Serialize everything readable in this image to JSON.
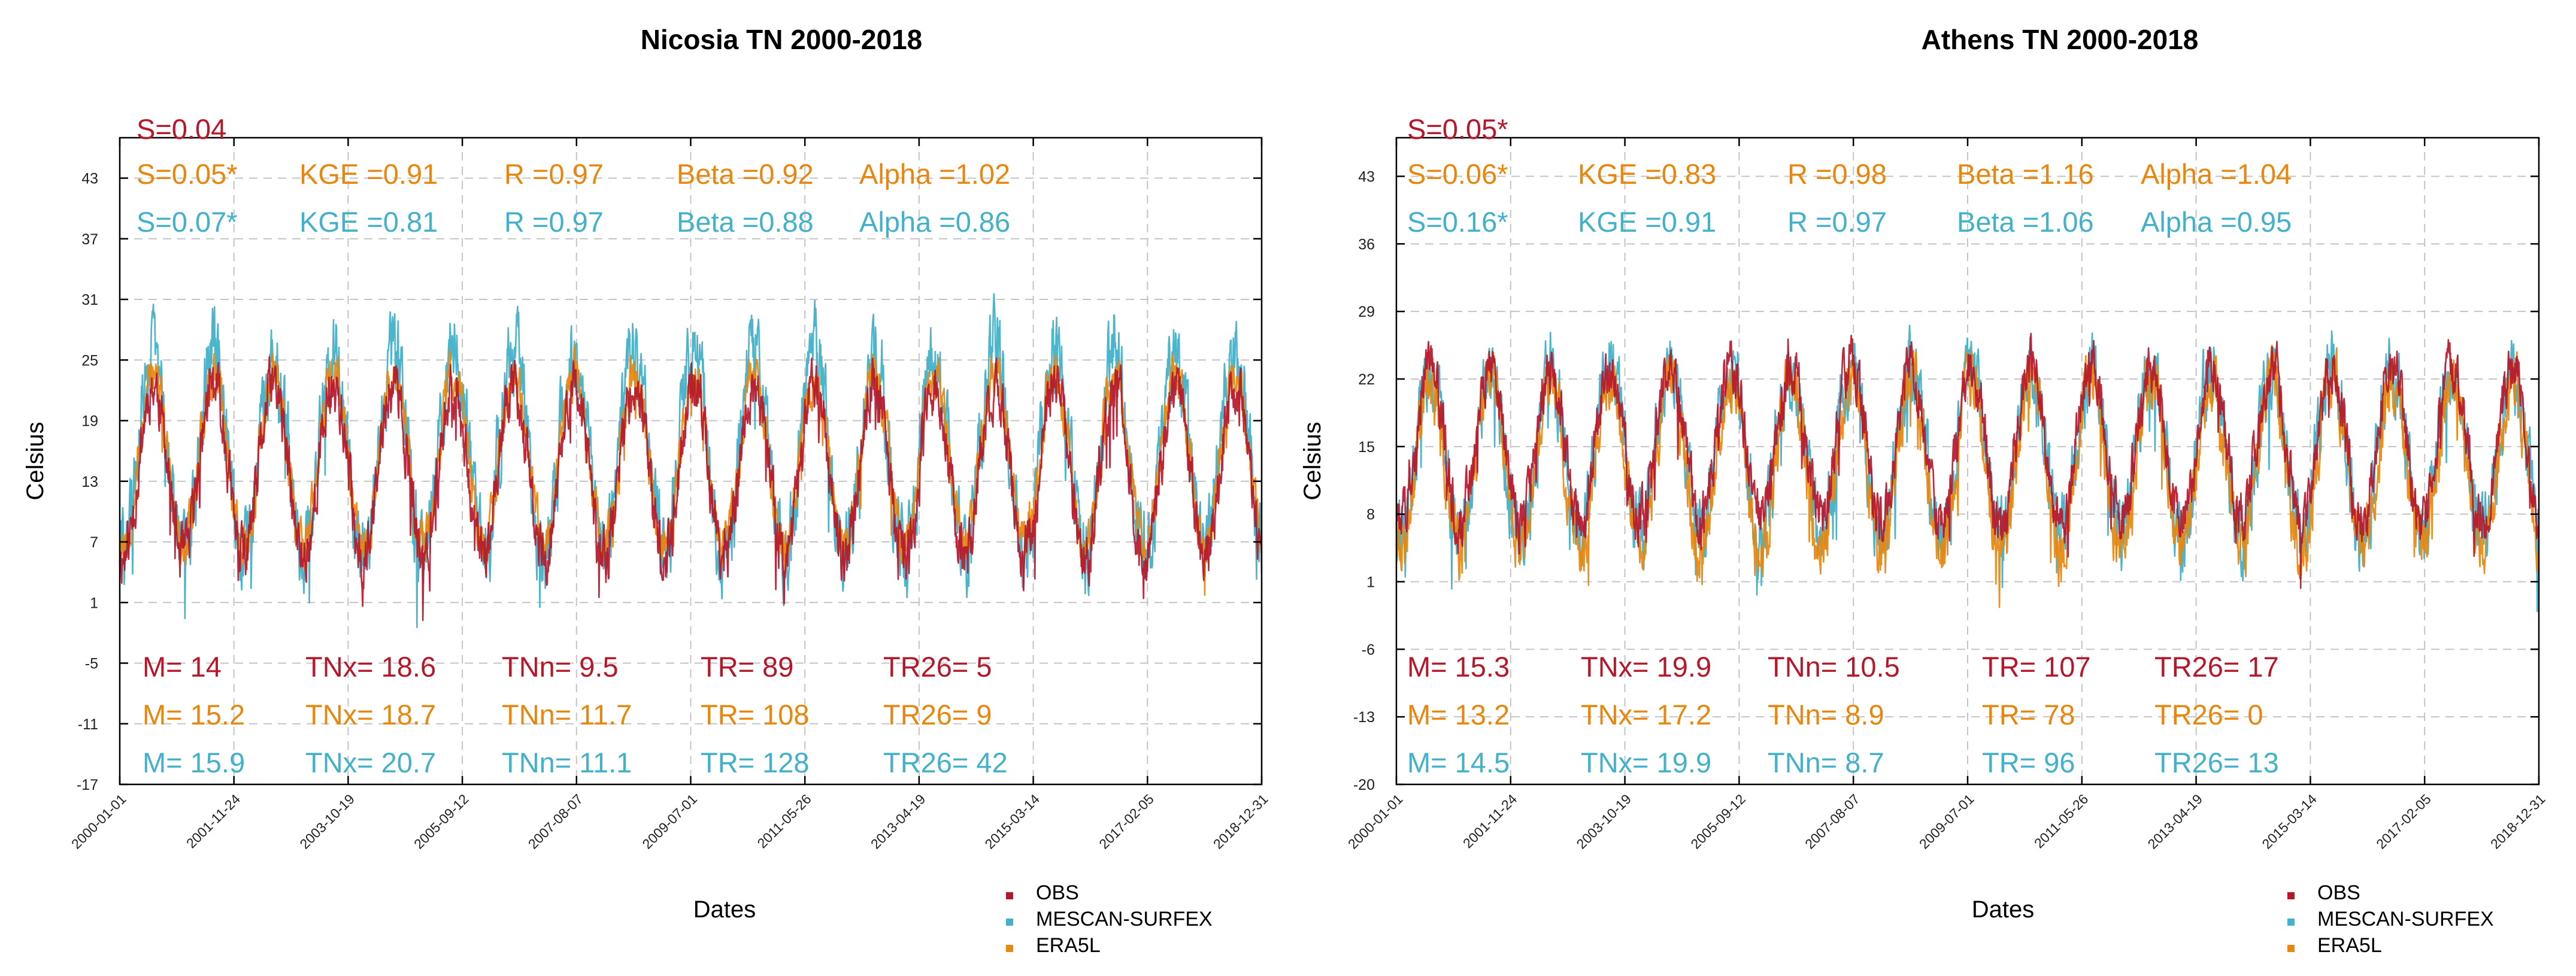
{
  "legend": [
    {
      "label": "OBS",
      "color": "#b5172b"
    },
    {
      "label": "MESCAN-SURFEX",
      "color": "#42b1c9"
    },
    {
      "label": "ERA5L",
      "color": "#e7870d"
    }
  ],
  "chart_data": [
    {
      "type": "line",
      "title": "Nicosia TN 2000-2018",
      "xlabel": "Dates",
      "ylabel": "Celsius",
      "ylim": [
        -17,
        47
      ],
      "yticks": [
        43,
        37,
        31,
        25,
        19,
        13,
        7,
        1,
        -5,
        -11,
        -17
      ],
      "xticks": [
        "2000-01-01",
        "2001-11-24",
        "2003-10-19",
        "2005-09-12",
        "2007-08-07",
        "2009-07-01",
        "2011-05-26",
        "2013-04-19",
        "2015-03-14",
        "2017-02-05",
        "2018-12-31"
      ],
      "grid": true,
      "series": [
        {
          "name": "OBS",
          "color": "#b5172b",
          "mean": 14,
          "amplitude": 8.5,
          "noise": 2.2
        },
        {
          "name": "MESCAN-SURFEX",
          "color": "#42b1c9",
          "mean": 15.9,
          "amplitude": 10.0,
          "noise": 3.2
        },
        {
          "name": "ERA5L",
          "color": "#e7870d",
          "mean": 15.2,
          "amplitude": 8.3,
          "noise": 1.8
        }
      ],
      "stats_top": [
        {
          "color": "#b5172b",
          "items": [
            "S=0.04"
          ]
        },
        {
          "color": "#e7870d",
          "items": [
            "S=0.05*",
            "KGE =0.91",
            "R =0.97",
            "Beta =0.92",
            "Alpha =1.02"
          ]
        },
        {
          "color": "#42b1c9",
          "items": [
            "S=0.07*",
            "KGE =0.81",
            "R =0.97",
            "Beta =0.88",
            "Alpha =0.86"
          ]
        }
      ],
      "stats_bottom": [
        {
          "color": "#b5172b",
          "items": [
            "M= 14",
            "TNx= 18.6",
            "TNn= 9.5",
            "TR= 89",
            "TR26= 5"
          ]
        },
        {
          "color": "#e7870d",
          "items": [
            "M= 15.2",
            "TNx= 18.7",
            "TNn= 11.7",
            "TR= 108",
            "TR26= 9"
          ]
        },
        {
          "color": "#42b1c9",
          "items": [
            "M= 15.9",
            "TNx= 20.7",
            "TNn= 11.1",
            "TR= 128",
            "TR26= 42"
          ]
        }
      ]
    },
    {
      "type": "line",
      "title": "Athens TN 2000-2018",
      "xlabel": "Dates",
      "ylabel": "Celsius",
      "ylim": [
        -20,
        47
      ],
      "yticks": [
        43,
        36,
        29,
        22,
        15,
        8,
        1,
        -6,
        -13,
        -20
      ],
      "xticks": [
        "2000-01-01",
        "2001-11-24",
        "2003-10-19",
        "2005-09-12",
        "2007-08-07",
        "2009-07-01",
        "2011-05-26",
        "2013-04-19",
        "2015-03-14",
        "2017-02-05",
        "2018-12-31"
      ],
      "grid": true,
      "series": [
        {
          "name": "OBS",
          "color": "#b5172b",
          "mean": 15.3,
          "amplitude": 8.0,
          "noise": 2.2
        },
        {
          "name": "MESCAN-SURFEX",
          "color": "#42b1c9",
          "mean": 14.5,
          "amplitude": 8.6,
          "noise": 3.0
        },
        {
          "name": "ERA5L",
          "color": "#e7870d",
          "mean": 13.2,
          "amplitude": 8.8,
          "noise": 2.4
        }
      ],
      "stats_top": [
        {
          "color": "#b5172b",
          "items": [
            "S=0.05*"
          ]
        },
        {
          "color": "#e7870d",
          "items": [
            "S=0.06*",
            "KGE =0.83",
            "R =0.98",
            "Beta =1.16",
            "Alpha =1.04"
          ]
        },
        {
          "color": "#42b1c9",
          "items": [
            "S=0.16*",
            "KGE =0.91",
            "R =0.97",
            "Beta =1.06",
            "Alpha =0.95"
          ]
        }
      ],
      "stats_bottom": [
        {
          "color": "#b5172b",
          "items": [
            "M= 15.3",
            "TNx= 19.9",
            "TNn= 10.5",
            "TR= 107",
            "TR26= 17"
          ]
        },
        {
          "color": "#e7870d",
          "items": [
            "M= 13.2",
            "TNx= 17.2",
            "TNn= 8.9",
            "TR= 78",
            "TR26= 0"
          ]
        },
        {
          "color": "#42b1c9",
          "items": [
            "M= 14.5",
            "TNx= 19.9",
            "TNn= 8.7",
            "TR= 96",
            "TR26= 13"
          ]
        }
      ]
    }
  ]
}
